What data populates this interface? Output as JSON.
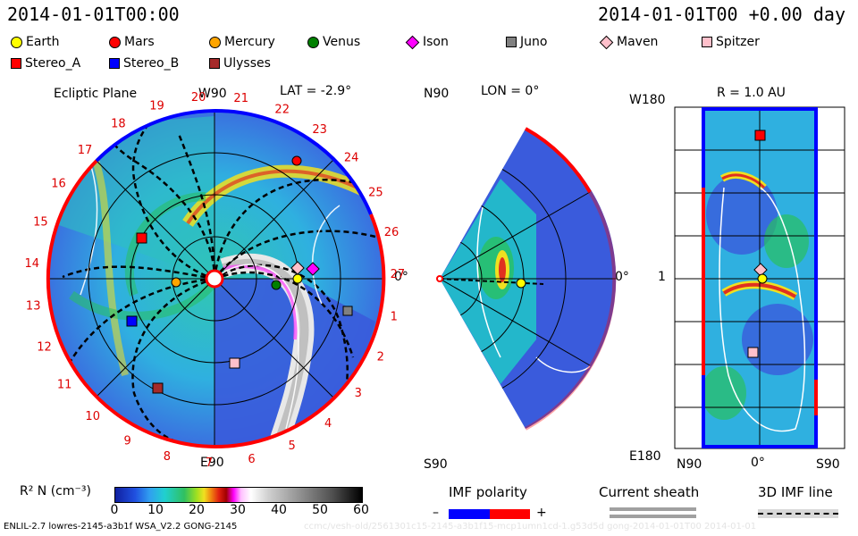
{
  "header": {
    "left_title": "2014-01-01T00:00",
    "right_title": "2014-01-01T00 +0.00 day"
  },
  "legend": {
    "row1": [
      {
        "label": "Earth",
        "color": "#ffff00",
        "shape": "circle"
      },
      {
        "label": "Mars",
        "color": "#ff0000",
        "shape": "circle"
      },
      {
        "label": "Mercury",
        "color": "#ffa500",
        "shape": "circle"
      },
      {
        "label": "Venus",
        "color": "#008000",
        "shape": "circle"
      },
      {
        "label": "Ison",
        "color": "#ff00ff",
        "shape": "diamond"
      },
      {
        "label": "Juno",
        "color": "#808080",
        "shape": "square"
      },
      {
        "label": "Maven",
        "color": "#ffc0cb",
        "shape": "diamond"
      },
      {
        "label": "Spitzer",
        "color": "#ffc0cb",
        "shape": "square"
      }
    ],
    "row2": [
      {
        "label": "Stereo_A",
        "color": "#ff0000",
        "shape": "square"
      },
      {
        "label": "Stereo_B",
        "color": "#0000ff",
        "shape": "square"
      },
      {
        "label": "Ulysses",
        "color": "#a52a2a",
        "shape": "square"
      }
    ]
  },
  "panel_ecliptic": {
    "title": "Ecliptic Plane",
    "w90": "W90",
    "lat": "LAT = -2.9°",
    "e90": "E90",
    "zero": "0°",
    "sector_labels": [
      "20",
      "21",
      "22",
      "23",
      "24",
      "25",
      "26",
      "27",
      "1",
      "2",
      "3",
      "4",
      "5",
      "6",
      "7",
      "8",
      "9",
      "10",
      "11",
      "12",
      "13",
      "14",
      "15",
      "16",
      "17",
      "18",
      "19"
    ]
  },
  "panel_meridional": {
    "n90": "N90",
    "lon": "LON = 0°",
    "s90": "S90",
    "zero": "0°"
  },
  "panel_shell": {
    "w180": "W180",
    "r": "R = 1.0 AU",
    "one": "1",
    "e180": "E180",
    "n90": "N90",
    "zero": "0°",
    "s90": "S90"
  },
  "colorbar": {
    "label": "R² N (cm⁻³)",
    "ticks": [
      "0",
      "10",
      "20",
      "30",
      "40",
      "50",
      "60"
    ]
  },
  "imf": {
    "title": "IMF polarity",
    "minus": "–",
    "plus": "+"
  },
  "current_sheath": {
    "title": "Current sheath"
  },
  "imf_line": {
    "title": "3D IMF line"
  },
  "footer": {
    "left": "ENLIL-2.7 lowres-2145-a3b1f WSA_V2.2 GONG-2145",
    "right_faded": "ccmc/vesh-old/2561301c15-2145-a3b1f15-mcp1umn1cd-1.g53d5d gong-2014-01-01T00   2014-01-01"
  },
  "colors": {
    "plasma_blue": "#3a5bdc",
    "plasma_cyan": "#20d0d0",
    "plasma_green": "#28c060",
    "plasma_yellow": "#f0e020",
    "plasma_red": "#e03020",
    "imf_neg": "#0000ff",
    "imf_pos": "#ff0000",
    "sheath_gray": "#a0a0a0"
  }
}
